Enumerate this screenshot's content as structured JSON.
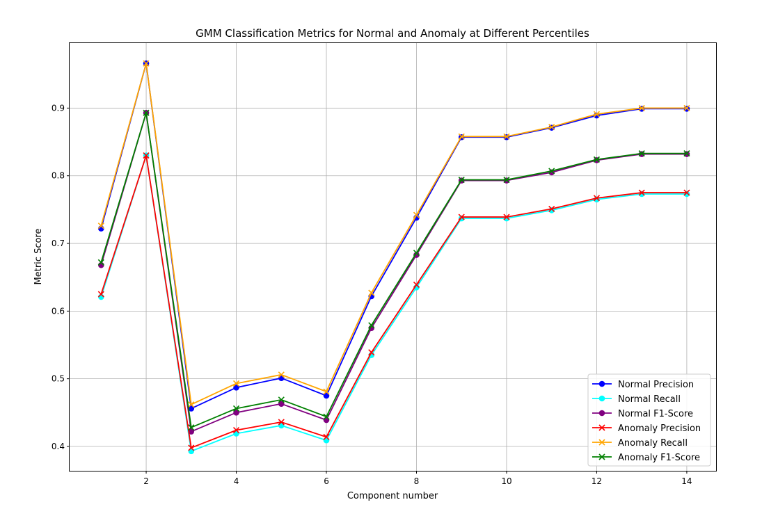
{
  "chart_data": {
    "type": "line",
    "title": "GMM Classification Metrics for Normal and Anomaly at Different Percentiles",
    "xlabel": "Component number",
    "ylabel": "Metric Score",
    "xlim": [
      0.3,
      14.65
    ],
    "ylim": [
      0.364,
      0.996
    ],
    "xticks": [
      2,
      4,
      6,
      8,
      10,
      12,
      14
    ],
    "yticks": [
      0.4,
      0.5,
      0.6,
      0.7,
      0.8,
      0.9
    ],
    "grid": true,
    "legend_position": "lower-right",
    "x": [
      1,
      2,
      3,
      4,
      5,
      6,
      7,
      8,
      9,
      10,
      11,
      12,
      13,
      14
    ],
    "series": [
      {
        "name": "Normal Precision",
        "color": "#0000ff",
        "marker": "circle",
        "values": [
          0.722,
          0.966,
          0.456,
          0.487,
          0.501,
          0.475,
          0.622,
          0.738,
          0.857,
          0.857,
          0.871,
          0.889,
          0.899,
          0.899
        ]
      },
      {
        "name": "Normal Recall",
        "color": "#00ffff",
        "marker": "circle",
        "values": [
          0.621,
          0.83,
          0.393,
          0.419,
          0.431,
          0.409,
          0.535,
          0.635,
          0.737,
          0.737,
          0.749,
          0.765,
          0.773,
          0.773
        ]
      },
      {
        "name": "Normal F1-Score",
        "color": "#800080",
        "marker": "circle",
        "values": [
          0.668,
          0.893,
          0.422,
          0.45,
          0.463,
          0.439,
          0.575,
          0.683,
          0.793,
          0.793,
          0.805,
          0.823,
          0.832,
          0.832
        ]
      },
      {
        "name": "Anomaly Precision",
        "color": "#ff0000",
        "marker": "x",
        "values": [
          0.625,
          0.83,
          0.398,
          0.424,
          0.436,
          0.414,
          0.539,
          0.639,
          0.739,
          0.739,
          0.751,
          0.767,
          0.775,
          0.775
        ]
      },
      {
        "name": "Anomaly Recall",
        "color": "#ffa500",
        "marker": "x",
        "values": [
          0.726,
          0.966,
          0.462,
          0.493,
          0.506,
          0.481,
          0.627,
          0.742,
          0.858,
          0.858,
          0.872,
          0.891,
          0.9,
          0.9
        ]
      },
      {
        "name": "Anomaly F1-Score",
        "color": "#008000",
        "marker": "x",
        "values": [
          0.672,
          0.893,
          0.428,
          0.456,
          0.469,
          0.444,
          0.579,
          0.686,
          0.794,
          0.794,
          0.807,
          0.824,
          0.833,
          0.833
        ]
      }
    ]
  }
}
